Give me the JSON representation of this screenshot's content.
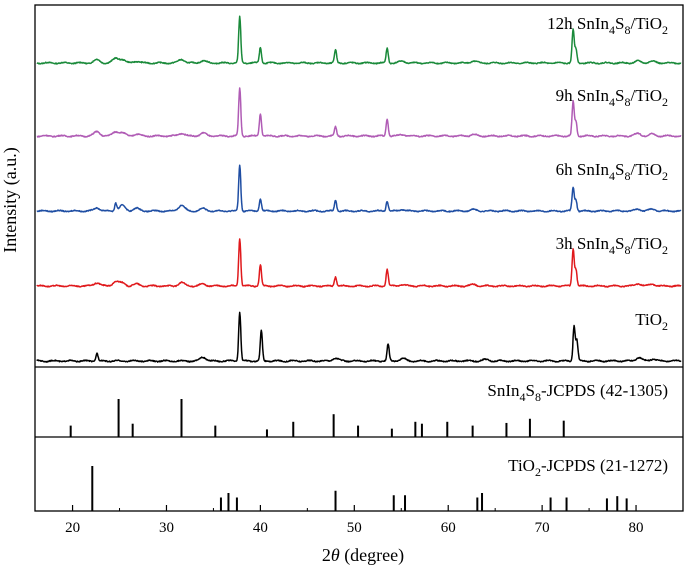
{
  "chart_data": {
    "type": "line",
    "xlabel_prefix": "2",
    "xlabel_symbol": "θ",
    "xlabel_suffix": " (degree)",
    "ylabel": "Intensity (a.u.)",
    "xlim": [
      16,
      85
    ],
    "x_ticks": [
      20,
      30,
      40,
      50,
      60,
      70,
      80
    ],
    "grid": false,
    "legend": "none",
    "series": [
      {
        "name": "12h SnIn4S8/TiO2",
        "label_parts": [
          [
            "12h SnIn",
            "n"
          ],
          [
            "4",
            "sub"
          ],
          [
            "S",
            "n"
          ],
          [
            "8",
            "sub"
          ],
          [
            "/TiO",
            "n"
          ],
          [
            "2",
            "sub"
          ]
        ],
        "color": "#1a8a3a",
        "peaks": [
          [
            22.6,
            0.07
          ],
          [
            24.6,
            0.1
          ],
          [
            25.3,
            0.07
          ],
          [
            26.8,
            0.04
          ],
          [
            31.6,
            0.08
          ],
          [
            33.9,
            0.05
          ],
          [
            37.8,
            1.0
          ],
          [
            40.0,
            0.34
          ],
          [
            48.0,
            0.28
          ],
          [
            53.5,
            0.32
          ],
          [
            55.1,
            0.04
          ],
          [
            62.7,
            0.04
          ],
          [
            73.3,
            0.72
          ],
          [
            73.6,
            0.3
          ],
          [
            80.2,
            0.04
          ],
          [
            81.7,
            0.04
          ]
        ]
      },
      {
        "name": "9h SnIn4S8/TiO2",
        "label_parts": [
          [
            "9h SnIn",
            "n"
          ],
          [
            "4",
            "sub"
          ],
          [
            "S",
            "n"
          ],
          [
            "8",
            "sub"
          ],
          [
            "/TiO",
            "n"
          ],
          [
            "2",
            "sub"
          ]
        ],
        "color": "#b05cb5",
        "peaks": [
          [
            22.6,
            0.09
          ],
          [
            24.6,
            0.09
          ],
          [
            25.3,
            0.06
          ],
          [
            26.8,
            0.04
          ],
          [
            31.6,
            0.06
          ],
          [
            33.9,
            0.06
          ],
          [
            37.8,
            1.0
          ],
          [
            40.0,
            0.47
          ],
          [
            48.0,
            0.19
          ],
          [
            53.5,
            0.36
          ],
          [
            55.1,
            0.03
          ],
          [
            62.7,
            0.03
          ],
          [
            73.3,
            0.71
          ],
          [
            73.6,
            0.3
          ],
          [
            80.2,
            0.05
          ],
          [
            81.7,
            0.04
          ]
        ]
      },
      {
        "name": "6h SnIn4S8/TiO2",
        "label_parts": [
          [
            "6h SnIn",
            "n"
          ],
          [
            "4",
            "sub"
          ],
          [
            "S",
            "n"
          ],
          [
            "8",
            "sub"
          ],
          [
            "/TiO",
            "n"
          ],
          [
            "2",
            "sub"
          ]
        ],
        "color": "#1f4ea3",
        "peaks": [
          [
            22.6,
            0.07
          ],
          [
            24.6,
            0.17
          ],
          [
            25.3,
            0.12
          ],
          [
            26.8,
            0.06
          ],
          [
            31.6,
            0.13
          ],
          [
            33.9,
            0.05
          ],
          [
            37.8,
            1.0
          ],
          [
            40.0,
            0.27
          ],
          [
            48.0,
            0.24
          ],
          [
            53.5,
            0.22
          ],
          [
            55.1,
            0.03
          ],
          [
            62.7,
            0.03
          ],
          [
            73.3,
            0.51
          ],
          [
            73.6,
            0.24
          ],
          [
            80.2,
            0.04
          ],
          [
            81.7,
            0.04
          ]
        ]
      },
      {
        "name": "3h SnIn4S8/TiO2",
        "label_parts": [
          [
            "3h SnIn",
            "n"
          ],
          [
            "4",
            "sub"
          ],
          [
            "S",
            "n"
          ],
          [
            "8",
            "sub"
          ],
          [
            "/TiO",
            "n"
          ],
          [
            "2",
            "sub"
          ]
        ],
        "color": "#e0191c",
        "peaks": [
          [
            22.6,
            0.07
          ],
          [
            24.6,
            0.09
          ],
          [
            25.3,
            0.06
          ],
          [
            26.8,
            0.04
          ],
          [
            31.6,
            0.07
          ],
          [
            33.9,
            0.04
          ],
          [
            37.8,
            1.0
          ],
          [
            40.0,
            0.44
          ],
          [
            48.0,
            0.2
          ],
          [
            53.5,
            0.35
          ],
          [
            55.1,
            0.03
          ],
          [
            62.7,
            0.03
          ],
          [
            73.3,
            0.77
          ],
          [
            73.6,
            0.35
          ],
          [
            80.2,
            0.05
          ],
          [
            81.7,
            0.04
          ]
        ]
      },
      {
        "name": "TiO2",
        "label_parts": [
          [
            "TiO",
            "n"
          ],
          [
            "2",
            "sub"
          ]
        ],
        "color": "#000000",
        "peaks": [
          [
            22.6,
            0.16
          ],
          [
            33.9,
            0.08
          ],
          [
            37.8,
            1.0
          ],
          [
            40.1,
            0.62
          ],
          [
            48.0,
            0.06
          ],
          [
            53.6,
            0.34
          ],
          [
            55.2,
            0.05
          ],
          [
            64.0,
            0.03
          ],
          [
            73.4,
            0.72
          ],
          [
            73.7,
            0.42
          ],
          [
            80.3,
            0.07
          ],
          [
            81.8,
            0.04
          ]
        ]
      }
    ],
    "references": [
      {
        "name": "SnIn4S8-JCPDS (42-1305)",
        "label_parts": [
          [
            "SnIn",
            "n"
          ],
          [
            "4",
            "sub"
          ],
          [
            "S",
            "n"
          ],
          [
            "8",
            "sub"
          ],
          [
            "-JCPDS (42-1305)",
            "n"
          ]
        ],
        "lines": [
          [
            19.8,
            0.3
          ],
          [
            24.9,
            1.0
          ],
          [
            26.4,
            0.35
          ],
          [
            31.6,
            1.0
          ],
          [
            35.2,
            0.3
          ],
          [
            40.7,
            0.2
          ],
          [
            43.5,
            0.4
          ],
          [
            47.8,
            0.6
          ],
          [
            50.4,
            0.3
          ],
          [
            54.0,
            0.22
          ],
          [
            56.5,
            0.4
          ],
          [
            57.2,
            0.35
          ],
          [
            59.9,
            0.4
          ],
          [
            62.6,
            0.3
          ],
          [
            66.2,
            0.37
          ],
          [
            68.7,
            0.48
          ],
          [
            72.3,
            0.43
          ]
        ]
      },
      {
        "name": "TiO2-JCPDS (21-1272)",
        "label_parts": [
          [
            "TiO",
            "n"
          ],
          [
            "2",
            "sub"
          ],
          [
            "-JCPDS (21-1272)",
            "n"
          ]
        ],
        "lines": [
          [
            22.1,
            1.0
          ],
          [
            35.8,
            0.3
          ],
          [
            36.6,
            0.4
          ],
          [
            37.5,
            0.3
          ],
          [
            48.0,
            0.45
          ],
          [
            54.2,
            0.35
          ],
          [
            55.4,
            0.35
          ],
          [
            63.1,
            0.3
          ],
          [
            63.6,
            0.4
          ],
          [
            70.9,
            0.3
          ],
          [
            72.6,
            0.3
          ],
          [
            76.9,
            0.28
          ],
          [
            78.0,
            0.33
          ],
          [
            79.0,
            0.28
          ]
        ]
      }
    ]
  }
}
